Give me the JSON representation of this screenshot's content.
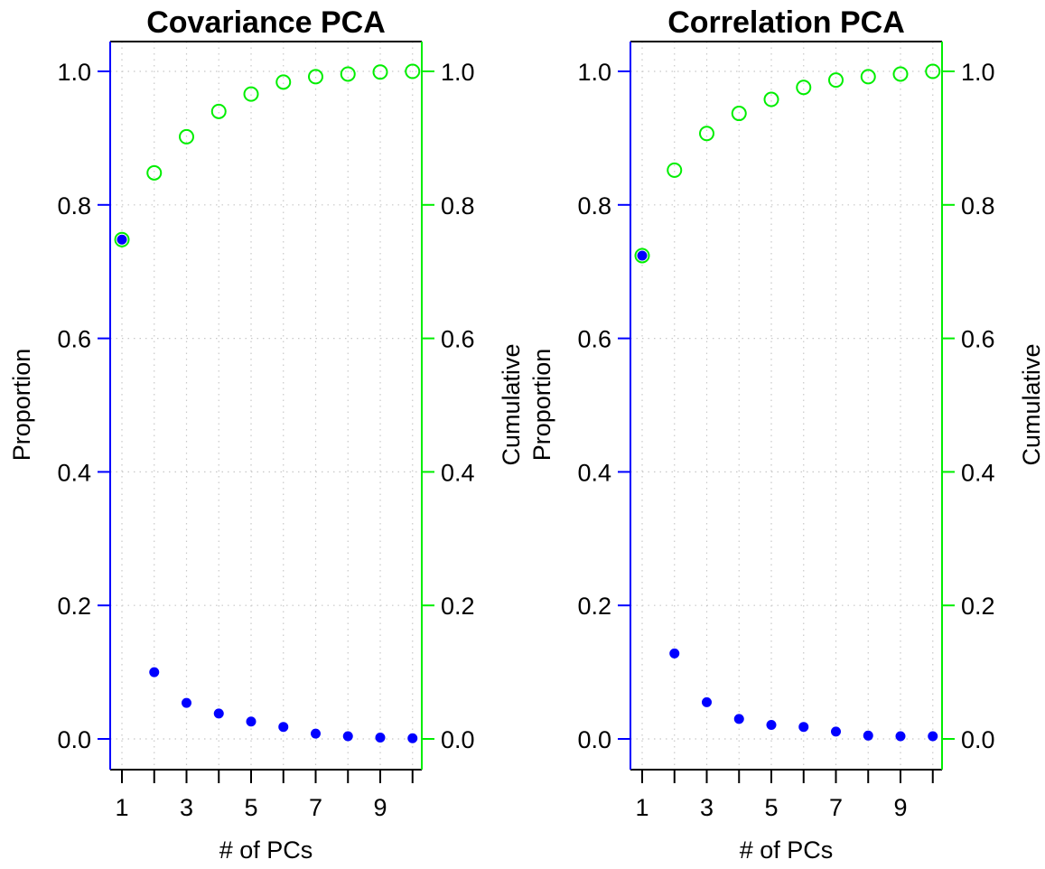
{
  "colors": {
    "proportion": "#0000ff",
    "cumulative": "#00ee00",
    "grid": "#c8c8c8",
    "frame": "#000000"
  },
  "chart_data": [
    {
      "type": "scatter",
      "title": "Covariance PCA",
      "xlabel": "# of PCs",
      "ylabel": "Proportion",
      "y2label": "Cumulative",
      "x": [
        1,
        2,
        3,
        4,
        5,
        6,
        7,
        8,
        9,
        10
      ],
      "xticks": [
        1,
        2,
        3,
        4,
        5,
        6,
        7,
        8,
        9,
        10
      ],
      "xtick_labels": [
        "1",
        "",
        "3",
        "",
        "5",
        "",
        "7",
        "",
        "9",
        ""
      ],
      "yticks": [
        "0.0",
        "0.2",
        "0.4",
        "0.6",
        "0.8",
        "1.0"
      ],
      "ylim": [
        0,
        1
      ],
      "grid": true,
      "series": [
        {
          "name": "Proportion",
          "marker": "filled-circle",
          "axis": "left",
          "values": [
            0.748,
            0.1,
            0.054,
            0.038,
            0.026,
            0.018,
            0.008,
            0.004,
            0.002,
            0.001
          ]
        },
        {
          "name": "Cumulative",
          "marker": "open-circle",
          "axis": "right",
          "values": [
            0.748,
            0.848,
            0.902,
            0.94,
            0.966,
            0.984,
            0.992,
            0.996,
            0.999,
            1.0
          ]
        }
      ]
    },
    {
      "type": "scatter",
      "title": "Correlation PCA",
      "xlabel": "# of PCs",
      "ylabel": "Proportion",
      "y2label": "Cumulative",
      "x": [
        1,
        2,
        3,
        4,
        5,
        6,
        7,
        8,
        9,
        10
      ],
      "xticks": [
        1,
        2,
        3,
        4,
        5,
        6,
        7,
        8,
        9,
        10
      ],
      "xtick_labels": [
        "1",
        "",
        "3",
        "",
        "5",
        "",
        "7",
        "",
        "9",
        ""
      ],
      "yticks": [
        "0.0",
        "0.2",
        "0.4",
        "0.6",
        "0.8",
        "1.0"
      ],
      "ylim": [
        0,
        1
      ],
      "grid": true,
      "series": [
        {
          "name": "Proportion",
          "marker": "filled-circle",
          "axis": "left",
          "values": [
            0.724,
            0.128,
            0.055,
            0.03,
            0.021,
            0.018,
            0.011,
            0.005,
            0.004,
            0.004
          ]
        },
        {
          "name": "Cumulative",
          "marker": "open-circle",
          "axis": "right",
          "values": [
            0.724,
            0.852,
            0.907,
            0.937,
            0.958,
            0.976,
            0.987,
            0.992,
            0.996,
            1.0
          ]
        }
      ]
    }
  ]
}
